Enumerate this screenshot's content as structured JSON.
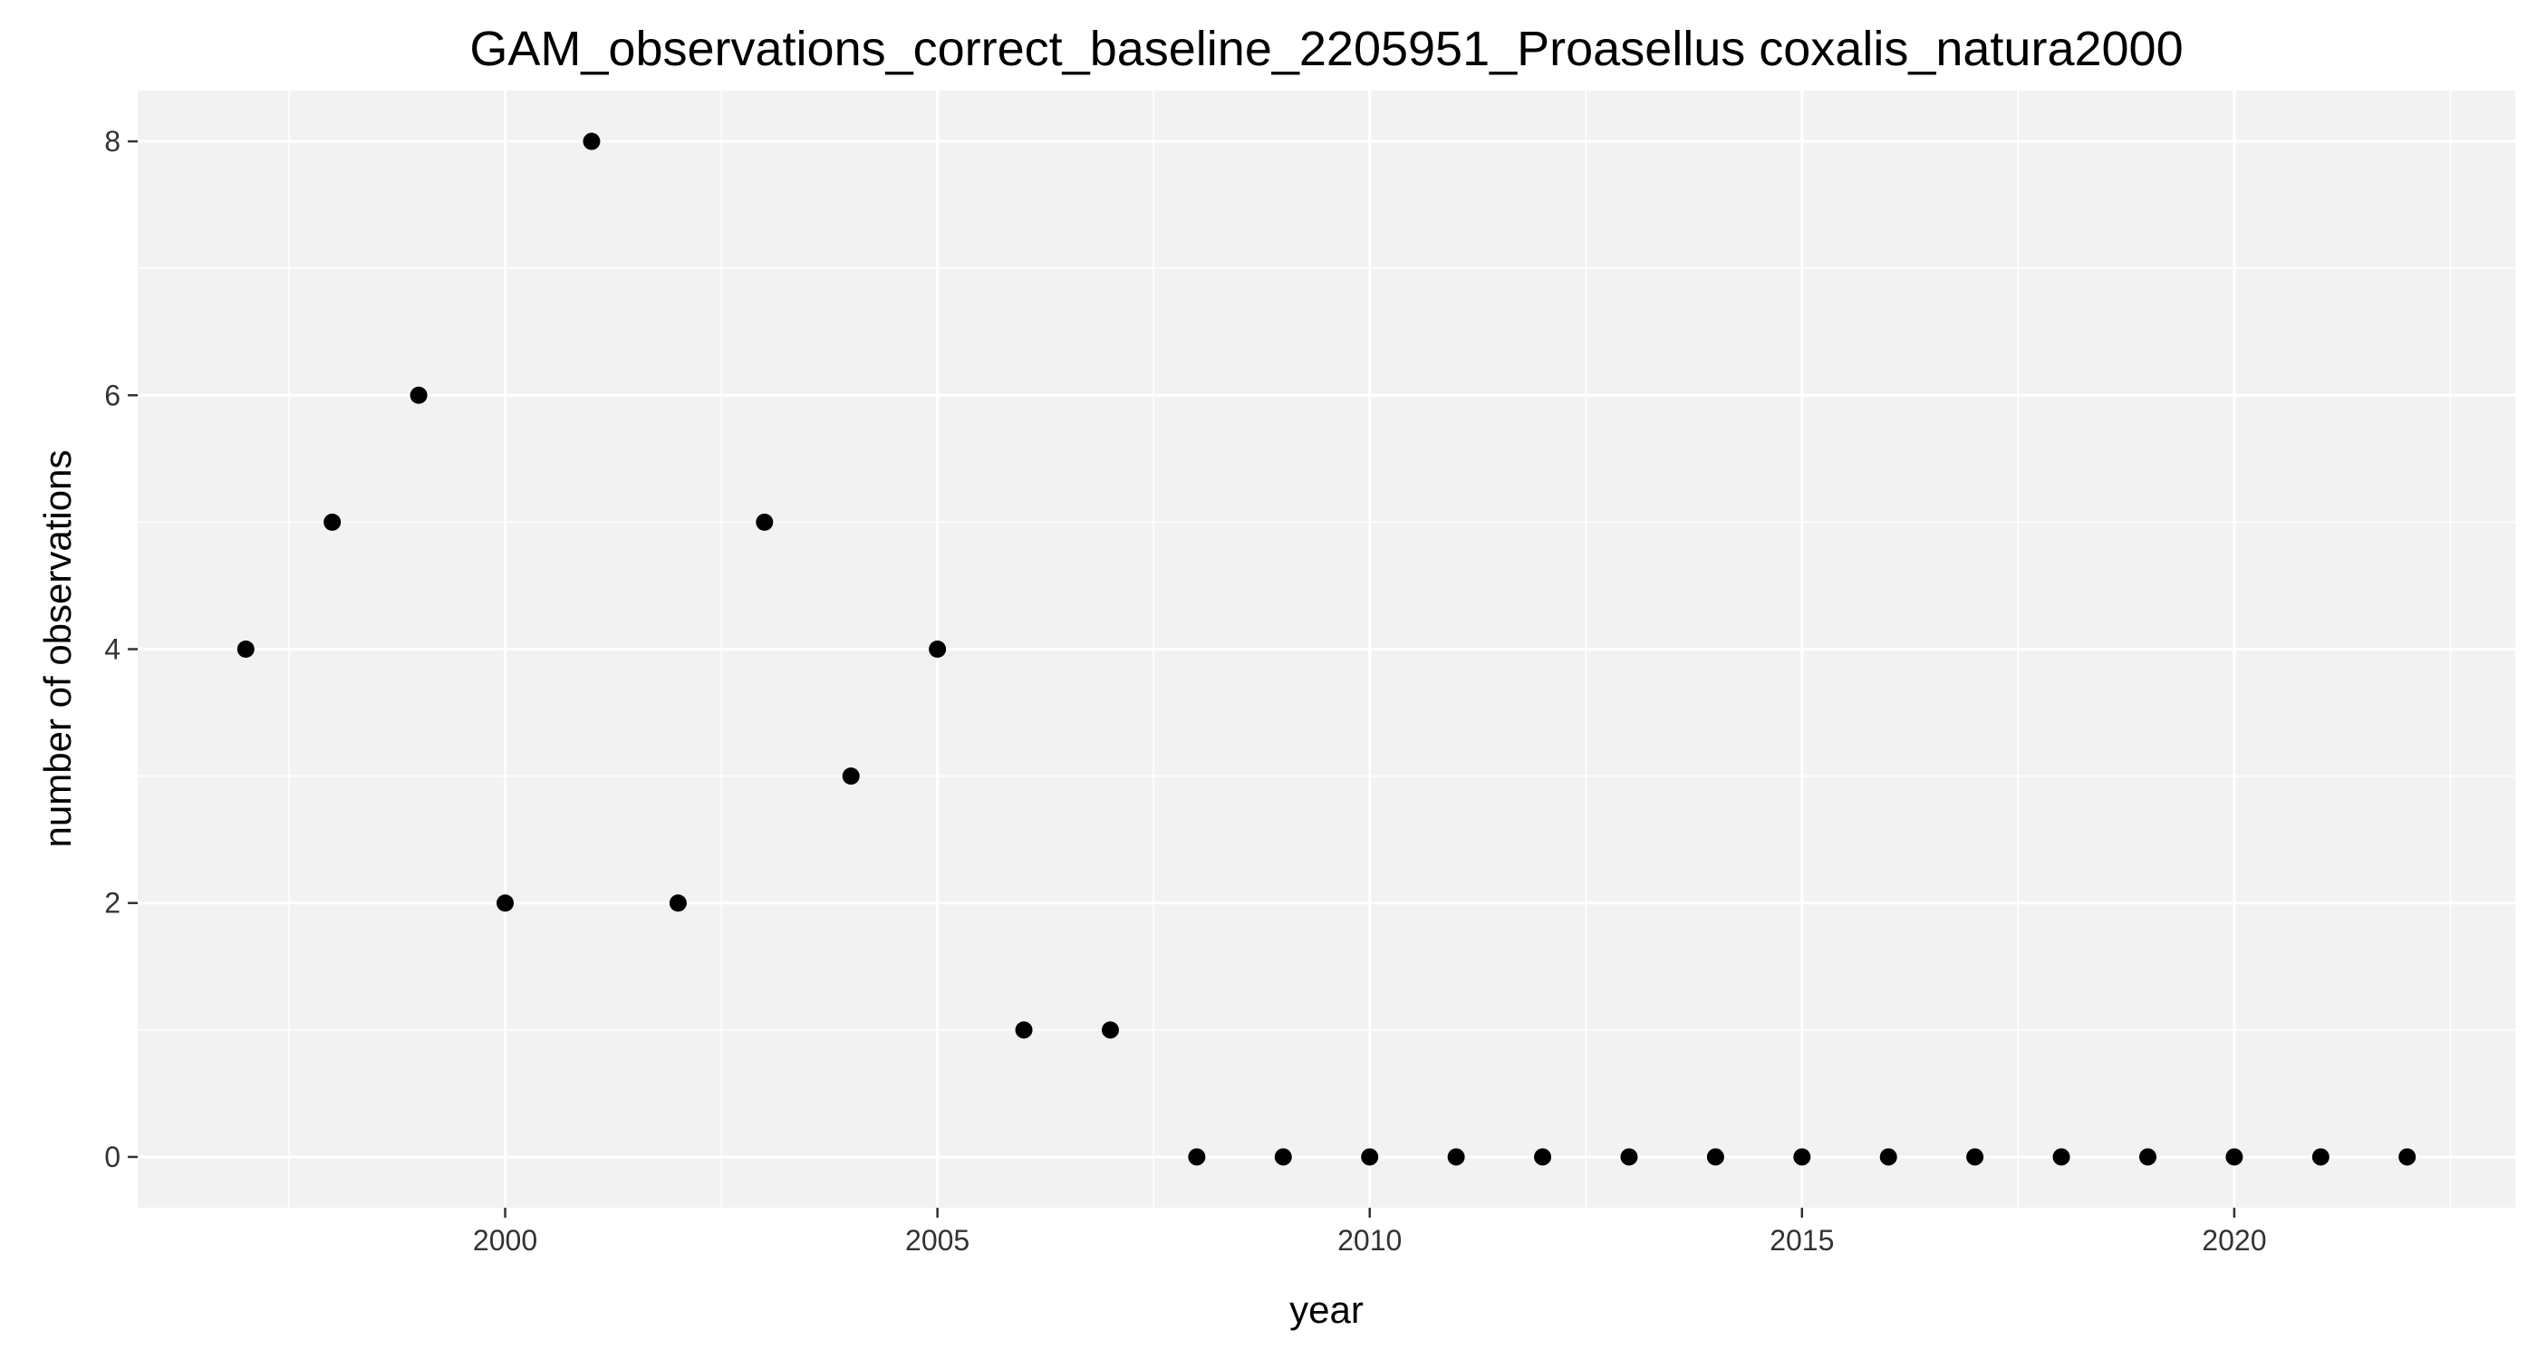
{
  "chart_data": {
    "type": "scatter",
    "title": "GAM_observations_correct_baseline_2205951_Proasellus coxalis_natura2000",
    "xlabel": "year",
    "ylabel": "number of observations",
    "x": [
      1997,
      1998,
      1999,
      2000,
      2001,
      2002,
      2003,
      2004,
      2005,
      2006,
      2007,
      2008,
      2009,
      2010,
      2011,
      2012,
      2013,
      2014,
      2015,
      2016,
      2017,
      2018,
      2019,
      2020,
      2021,
      2022
    ],
    "y": [
      4,
      5,
      6,
      2,
      8,
      2,
      5,
      3,
      4,
      1,
      1,
      0,
      0,
      0,
      0,
      0,
      0,
      0,
      0,
      0,
      0,
      0,
      0,
      0,
      0,
      0
    ],
    "xlim": [
      1995.75,
      2023.25
    ],
    "ylim": [
      -0.4,
      8.4
    ],
    "x_ticks": [
      2000,
      2005,
      2010,
      2015,
      2020
    ],
    "x_tick_labels": [
      "2000",
      "2005",
      "2010",
      "2015",
      "2020"
    ],
    "x_minor_ticks": [
      1997.5,
      2002.5,
      2007.5,
      2012.5,
      2017.5,
      2022.5
    ],
    "y_ticks": [
      0,
      2,
      4,
      6,
      8
    ],
    "y_tick_labels": [
      "0",
      "2",
      "4",
      "6",
      "8"
    ],
    "y_minor_ticks": [
      1,
      3,
      5,
      7
    ],
    "grid": true,
    "legend": "none",
    "colors": {
      "panel_background": "#f2f2f2",
      "grid_major": "#ffffff",
      "grid_minor": "#ffffff",
      "point": "#000000",
      "tick_mark": "#333333",
      "tick_label": "#333333",
      "text": "#000000"
    }
  }
}
